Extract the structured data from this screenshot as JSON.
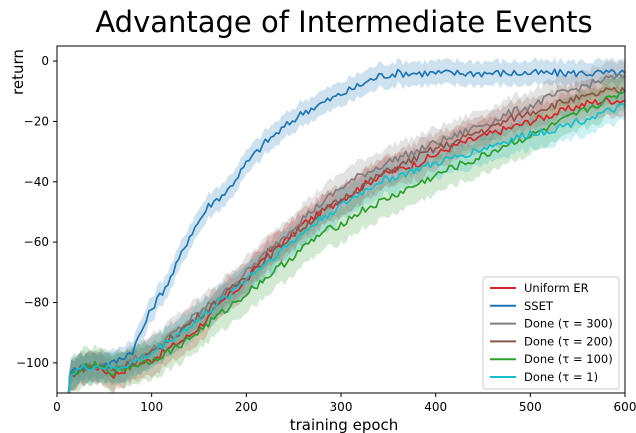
{
  "chart_data": {
    "type": "line",
    "title": "Advantage of Intermediate Events",
    "xlabel": "training epoch",
    "ylabel": "return",
    "xlim": [
      0,
      600
    ],
    "ylim": [
      -110,
      5
    ],
    "x_ticks": [
      0,
      100,
      200,
      300,
      400,
      500,
      600
    ],
    "y_ticks": [
      0,
      -20,
      -40,
      -60,
      -80,
      -100
    ],
    "x_tick_labels": [
      "0",
      "100",
      "200",
      "300",
      "400",
      "500",
      "600"
    ],
    "y_tick_labels": [
      "0",
      "−20",
      "−40",
      "−60",
      "−80",
      "−100"
    ],
    "grid": false,
    "legend_position": "lower-right",
    "series": [
      {
        "name": "Uniform ER",
        "color": "#d62728",
        "points": [
          [
            12,
            -110
          ],
          [
            15,
            -104
          ],
          [
            25,
            -102
          ],
          [
            40,
            -101
          ],
          [
            60,
            -104
          ],
          [
            80,
            -101
          ],
          [
            100,
            -99
          ],
          [
            120,
            -95
          ],
          [
            140,
            -91
          ],
          [
            160,
            -85
          ],
          [
            180,
            -78
          ],
          [
            200,
            -73
          ],
          [
            220,
            -64
          ],
          [
            240,
            -60
          ],
          [
            260,
            -54
          ],
          [
            280,
            -50
          ],
          [
            300,
            -46
          ],
          [
            320,
            -42
          ],
          [
            340,
            -38
          ],
          [
            360,
            -36
          ],
          [
            380,
            -34
          ],
          [
            400,
            -31
          ],
          [
            420,
            -28
          ],
          [
            440,
            -26
          ],
          [
            460,
            -24
          ],
          [
            480,
            -22
          ],
          [
            500,
            -20
          ],
          [
            520,
            -18
          ],
          [
            540,
            -16
          ],
          [
            560,
            -14
          ],
          [
            580,
            -13
          ],
          [
            600,
            -13
          ]
        ],
        "band": 5
      },
      {
        "name": "SSET",
        "color": "#1f77b4",
        "points": [
          [
            12,
            -110
          ],
          [
            15,
            -103
          ],
          [
            25,
            -101
          ],
          [
            40,
            -101
          ],
          [
            60,
            -100
          ],
          [
            80,
            -96
          ],
          [
            100,
            -82
          ],
          [
            120,
            -72
          ],
          [
            140,
            -58
          ],
          [
            160,
            -48
          ],
          [
            180,
            -43
          ],
          [
            200,
            -34
          ],
          [
            220,
            -27
          ],
          [
            240,
            -22
          ],
          [
            260,
            -17
          ],
          [
            280,
            -14
          ],
          [
            300,
            -11
          ],
          [
            320,
            -8
          ],
          [
            340,
            -5
          ],
          [
            360,
            -4
          ],
          [
            380,
            -4
          ],
          [
            400,
            -4
          ],
          [
            420,
            -4
          ],
          [
            440,
            -4
          ],
          [
            460,
            -4
          ],
          [
            480,
            -4
          ],
          [
            500,
            -4
          ],
          [
            520,
            -4
          ],
          [
            540,
            -4
          ],
          [
            560,
            -4
          ],
          [
            580,
            -4
          ],
          [
            600,
            -4
          ]
        ],
        "band": 4
      },
      {
        "name": "Done (τ = 300)",
        "color": "#7f7f7f",
        "points": [
          [
            12,
            -110
          ],
          [
            15,
            -104
          ],
          [
            25,
            -102
          ],
          [
            40,
            -101
          ],
          [
            60,
            -102
          ],
          [
            80,
            -99
          ],
          [
            100,
            -96
          ],
          [
            120,
            -91
          ],
          [
            140,
            -86
          ],
          [
            160,
            -81
          ],
          [
            180,
            -76
          ],
          [
            200,
            -70
          ],
          [
            220,
            -64
          ],
          [
            240,
            -58
          ],
          [
            260,
            -52
          ],
          [
            280,
            -47
          ],
          [
            300,
            -42
          ],
          [
            320,
            -38
          ],
          [
            340,
            -35
          ],
          [
            360,
            -32
          ],
          [
            380,
            -30
          ],
          [
            400,
            -27
          ],
          [
            420,
            -25
          ],
          [
            440,
            -22
          ],
          [
            460,
            -20
          ],
          [
            480,
            -17
          ],
          [
            500,
            -15
          ],
          [
            520,
            -12
          ],
          [
            540,
            -10
          ],
          [
            560,
            -8
          ],
          [
            580,
            -6
          ],
          [
            600,
            -5
          ]
        ],
        "band": 5
      },
      {
        "name": "Done (τ = 200)",
        "color": "#8c564b",
        "points": [
          [
            12,
            -110
          ],
          [
            15,
            -104
          ],
          [
            25,
            -102
          ],
          [
            40,
            -101
          ],
          [
            60,
            -102
          ],
          [
            80,
            -100
          ],
          [
            100,
            -97
          ],
          [
            120,
            -92
          ],
          [
            140,
            -87
          ],
          [
            160,
            -82
          ],
          [
            180,
            -77
          ],
          [
            200,
            -71
          ],
          [
            220,
            -66
          ],
          [
            240,
            -60
          ],
          [
            260,
            -55
          ],
          [
            280,
            -50
          ],
          [
            300,
            -46
          ],
          [
            320,
            -42
          ],
          [
            340,
            -38
          ],
          [
            360,
            -35
          ],
          [
            380,
            -32
          ],
          [
            400,
            -29
          ],
          [
            420,
            -27
          ],
          [
            440,
            -24
          ],
          [
            460,
            -22
          ],
          [
            480,
            -19
          ],
          [
            500,
            -17
          ],
          [
            520,
            -15
          ],
          [
            540,
            -13
          ],
          [
            560,
            -12
          ],
          [
            580,
            -10
          ],
          [
            600,
            -10
          ]
        ],
        "band": 5
      },
      {
        "name": "Done (τ = 100)",
        "color": "#2ca02c",
        "points": [
          [
            12,
            -110
          ],
          [
            15,
            -104
          ],
          [
            25,
            -102
          ],
          [
            40,
            -101
          ],
          [
            60,
            -103
          ],
          [
            80,
            -101
          ],
          [
            100,
            -99
          ],
          [
            120,
            -96
          ],
          [
            140,
            -92
          ],
          [
            160,
            -87
          ],
          [
            180,
            -82
          ],
          [
            200,
            -77
          ],
          [
            220,
            -72
          ],
          [
            240,
            -67
          ],
          [
            260,
            -62
          ],
          [
            280,
            -57
          ],
          [
            300,
            -54
          ],
          [
            320,
            -50
          ],
          [
            340,
            -47
          ],
          [
            360,
            -44
          ],
          [
            380,
            -41
          ],
          [
            400,
            -38
          ],
          [
            420,
            -35
          ],
          [
            440,
            -33
          ],
          [
            460,
            -30
          ],
          [
            480,
            -27
          ],
          [
            500,
            -25
          ],
          [
            520,
            -22
          ],
          [
            540,
            -19
          ],
          [
            560,
            -16
          ],
          [
            580,
            -13
          ],
          [
            600,
            -10
          ]
        ],
        "band": 6
      },
      {
        "name": "Done (τ = 1)",
        "color": "#17becf",
        "points": [
          [
            12,
            -110
          ],
          [
            15,
            -104
          ],
          [
            25,
            -102
          ],
          [
            40,
            -101
          ],
          [
            60,
            -102
          ],
          [
            80,
            -100
          ],
          [
            100,
            -97
          ],
          [
            120,
            -92
          ],
          [
            140,
            -88
          ],
          [
            160,
            -83
          ],
          [
            180,
            -78
          ],
          [
            200,
            -72
          ],
          [
            220,
            -67
          ],
          [
            240,
            -62
          ],
          [
            260,
            -57
          ],
          [
            280,
            -52
          ],
          [
            300,
            -48
          ],
          [
            320,
            -44
          ],
          [
            340,
            -40
          ],
          [
            360,
            -38
          ],
          [
            380,
            -36
          ],
          [
            400,
            -34
          ],
          [
            420,
            -32
          ],
          [
            440,
            -30
          ],
          [
            460,
            -28
          ],
          [
            480,
            -26
          ],
          [
            500,
            -24
          ],
          [
            520,
            -23
          ],
          [
            540,
            -21
          ],
          [
            560,
            -19
          ],
          [
            580,
            -17
          ],
          [
            600,
            -15
          ]
        ],
        "band": 5
      }
    ]
  }
}
